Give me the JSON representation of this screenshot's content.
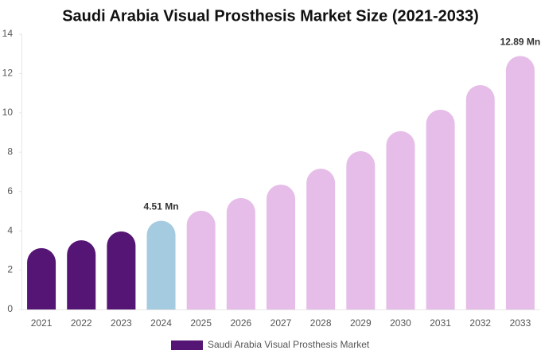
{
  "chart_data": {
    "type": "bar",
    "title": "Saudi Arabia Visual Prosthesis Market Size (2021-2033)",
    "categories": [
      "2021",
      "2022",
      "2023",
      "2024",
      "2025",
      "2026",
      "2027",
      "2028",
      "2029",
      "2030",
      "2031",
      "2032",
      "2033"
    ],
    "series": [
      {
        "name": "Saudi Arabia Visual Prosthesis Market",
        "color": "#541574",
        "values": [
          3.12,
          3.52,
          3.97,
          4.51,
          5.02,
          5.67,
          6.35,
          7.16,
          8.05,
          9.07,
          10.16,
          11.41,
          12.89
        ],
        "colors": [
          "#541574",
          "#541574",
          "#541574",
          "#a4cbdf",
          "#e6bde8",
          "#e6bde8",
          "#e6bde8",
          "#e6bde8",
          "#e6bde8",
          "#e6bde8",
          "#e6bde8",
          "#e6bde8",
          "#e6bde8"
        ],
        "value_labels": [
          null,
          null,
          null,
          "4.51 Mn",
          null,
          null,
          null,
          null,
          null,
          null,
          null,
          null,
          "12.89 Mn"
        ]
      }
    ],
    "ylim": [
      0,
      14
    ],
    "yticks": [
      0,
      2,
      4,
      6,
      8,
      10,
      12,
      14
    ]
  }
}
